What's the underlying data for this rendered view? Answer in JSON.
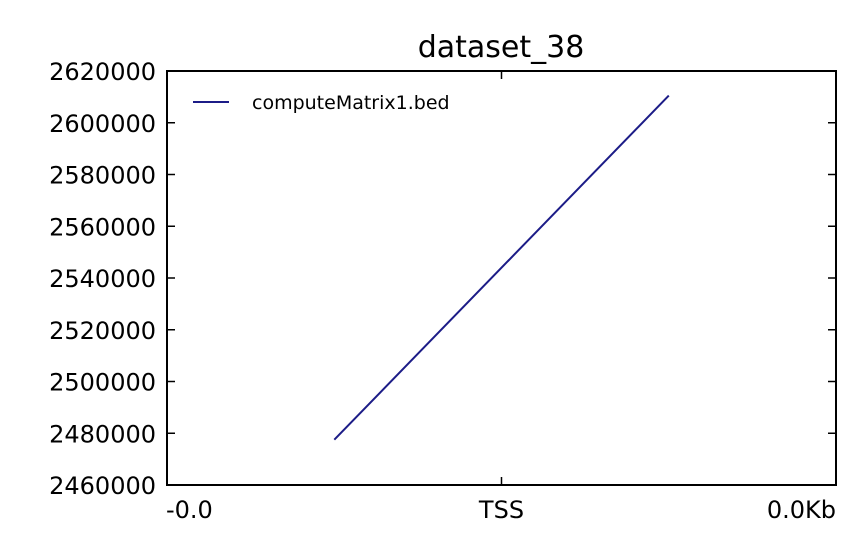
{
  "chart_data": {
    "type": "line",
    "title": "dataset_38",
    "xlabel": "",
    "ylabel": "",
    "x_ticks": [
      "-0.0",
      "TSS",
      "0.0Kb"
    ],
    "y_ticks": [
      "2460000",
      "2480000",
      "2500000",
      "2520000",
      "2540000",
      "2560000",
      "2580000",
      "2600000",
      "2620000"
    ],
    "ylim": [
      2460000,
      2620000
    ],
    "grid": false,
    "legend_position": "top-left",
    "series": [
      {
        "name": "computeMatrix1.bed",
        "color": "#1c1c87",
        "x": [
          0.25,
          0.75
        ],
        "y": [
          2477500,
          2610500
        ]
      }
    ]
  }
}
